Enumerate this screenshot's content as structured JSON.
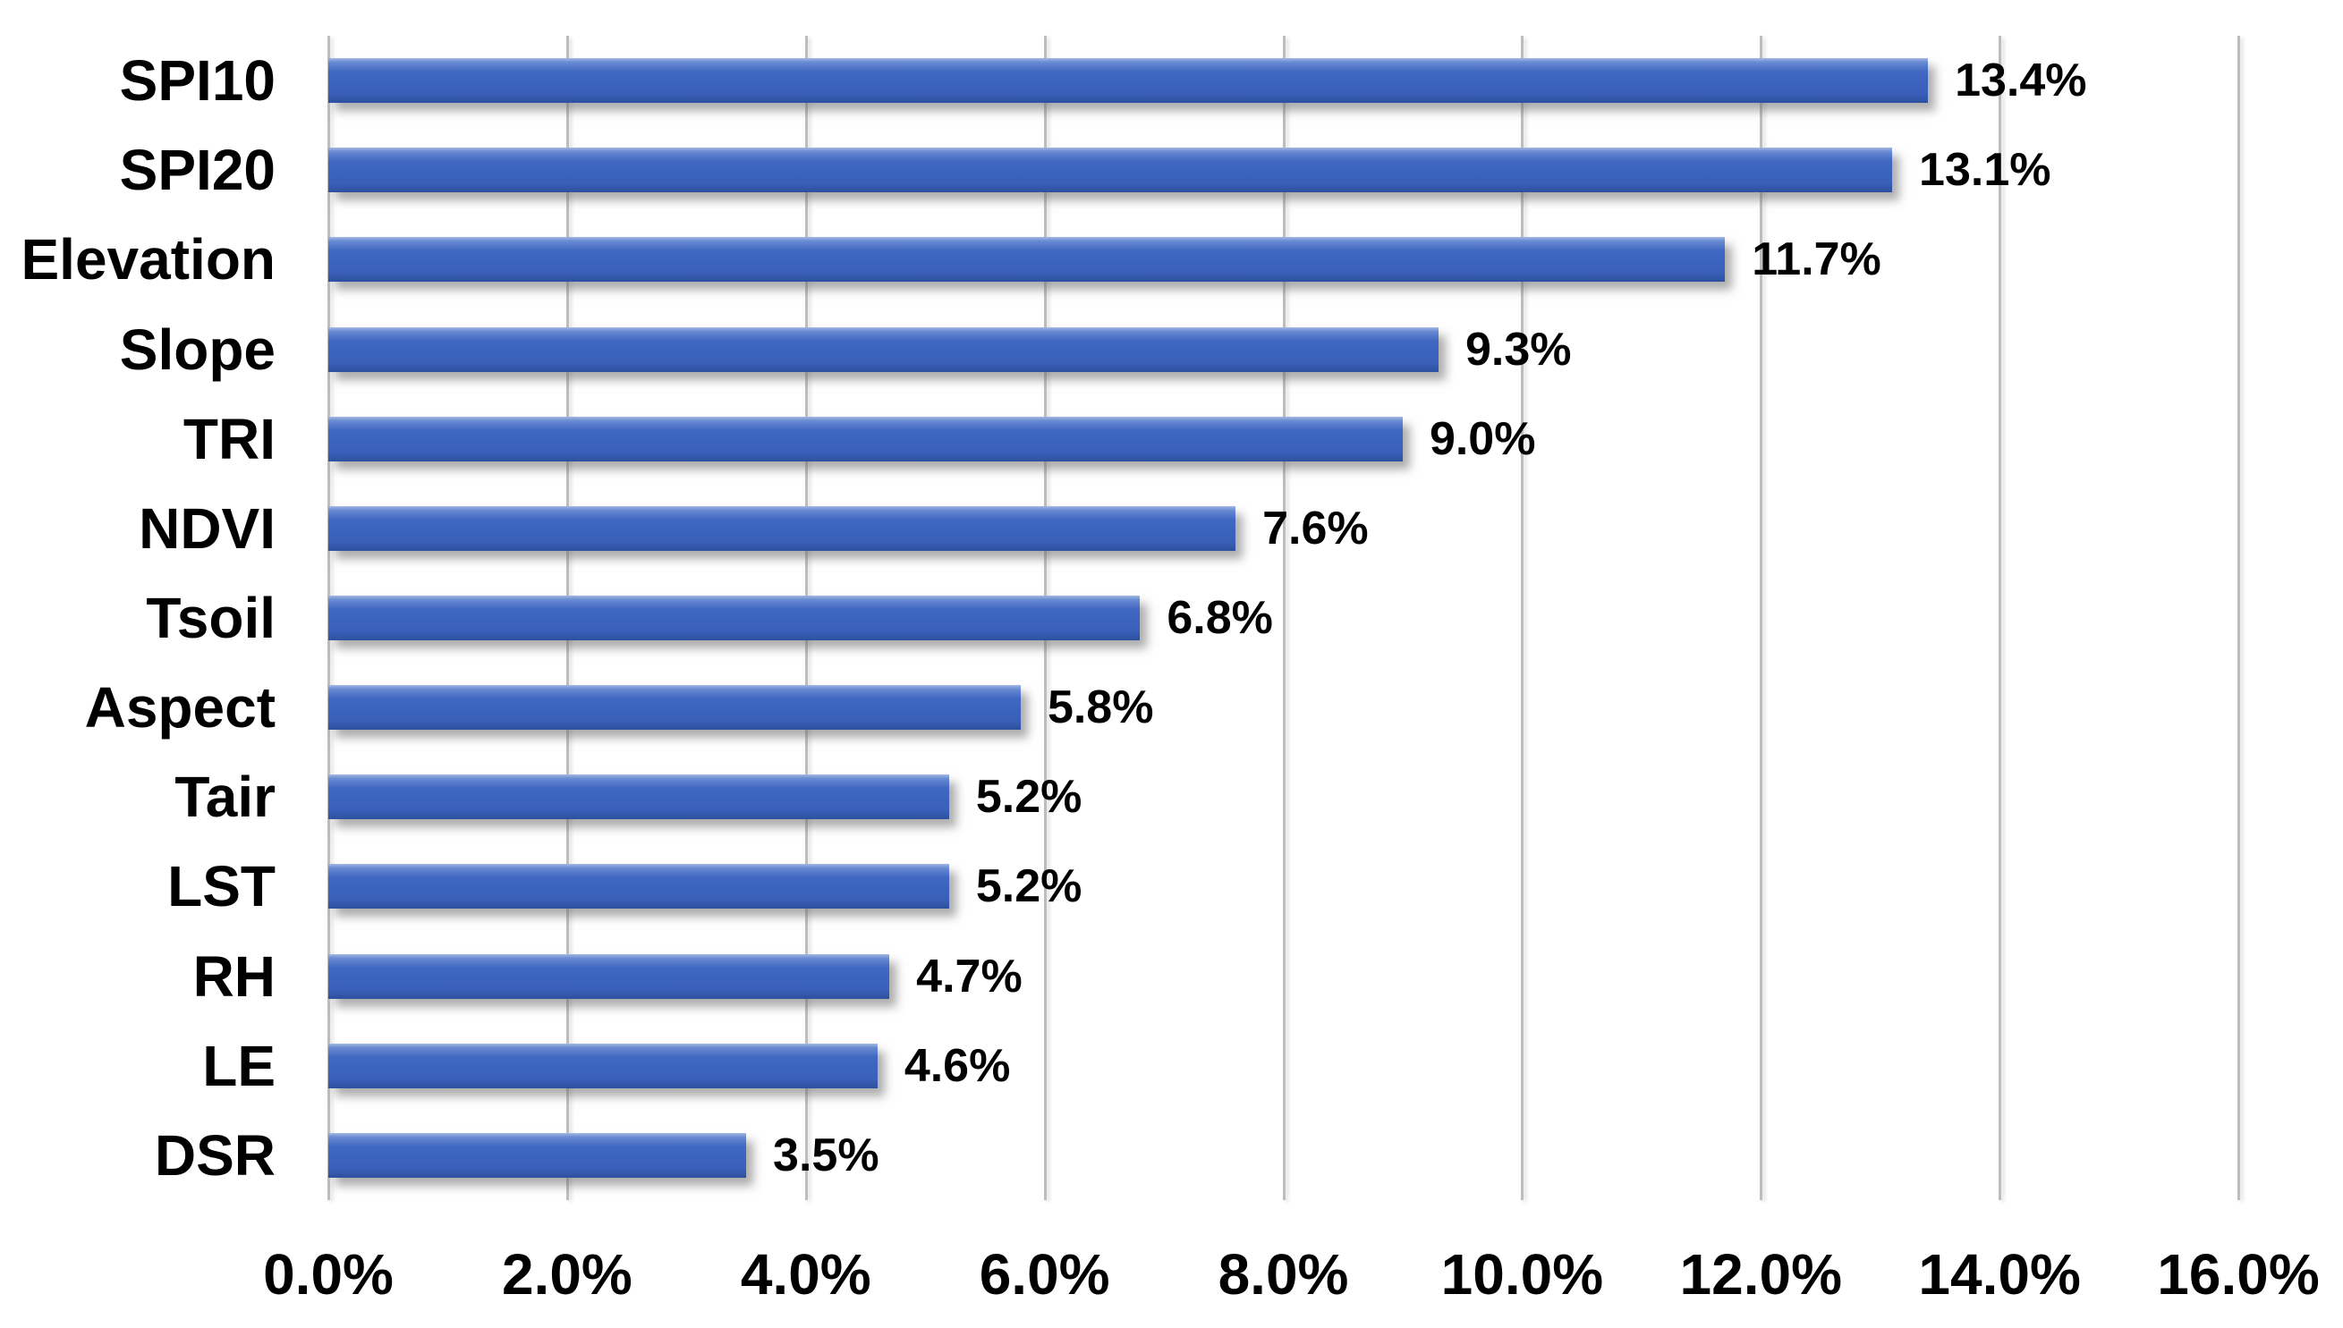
{
  "chart_data": {
    "type": "bar",
    "orientation": "horizontal",
    "title": "",
    "xlabel": "",
    "ylabel": "",
    "categories": [
      "SPI10",
      "SPI20",
      "Elevation",
      "Slope",
      "TRI",
      "NDVI",
      "Tsoil",
      "Aspect",
      "Tair",
      "LST",
      "RH",
      "LE",
      "DSR"
    ],
    "values": [
      13.4,
      13.1,
      11.7,
      9.3,
      9.0,
      7.6,
      6.8,
      5.8,
      5.2,
      5.2,
      4.7,
      4.6,
      3.5
    ],
    "value_labels": [
      "13.4%",
      "13.1%",
      "11.7%",
      "9.3%",
      "9.0%",
      "7.6%",
      "6.8%",
      "5.8%",
      "5.2%",
      "5.2%",
      "4.7%",
      "4.6%",
      "3.5%"
    ],
    "x_ticks": [
      "0.0%",
      "2.0%",
      "4.0%",
      "6.0%",
      "8.0%",
      "10.0%",
      "12.0%",
      "14.0%",
      "16.0%"
    ],
    "xlim": [
      0,
      16
    ],
    "grid": true,
    "legend": "none",
    "colors": {
      "bar_fill": "#3B63BE",
      "bar_highlight": "#A3B8E3",
      "bar_shadow_edge": "#2D509E",
      "gridline": "#BDBDBD",
      "text": "#000000",
      "background": "#FFFFFF"
    }
  }
}
